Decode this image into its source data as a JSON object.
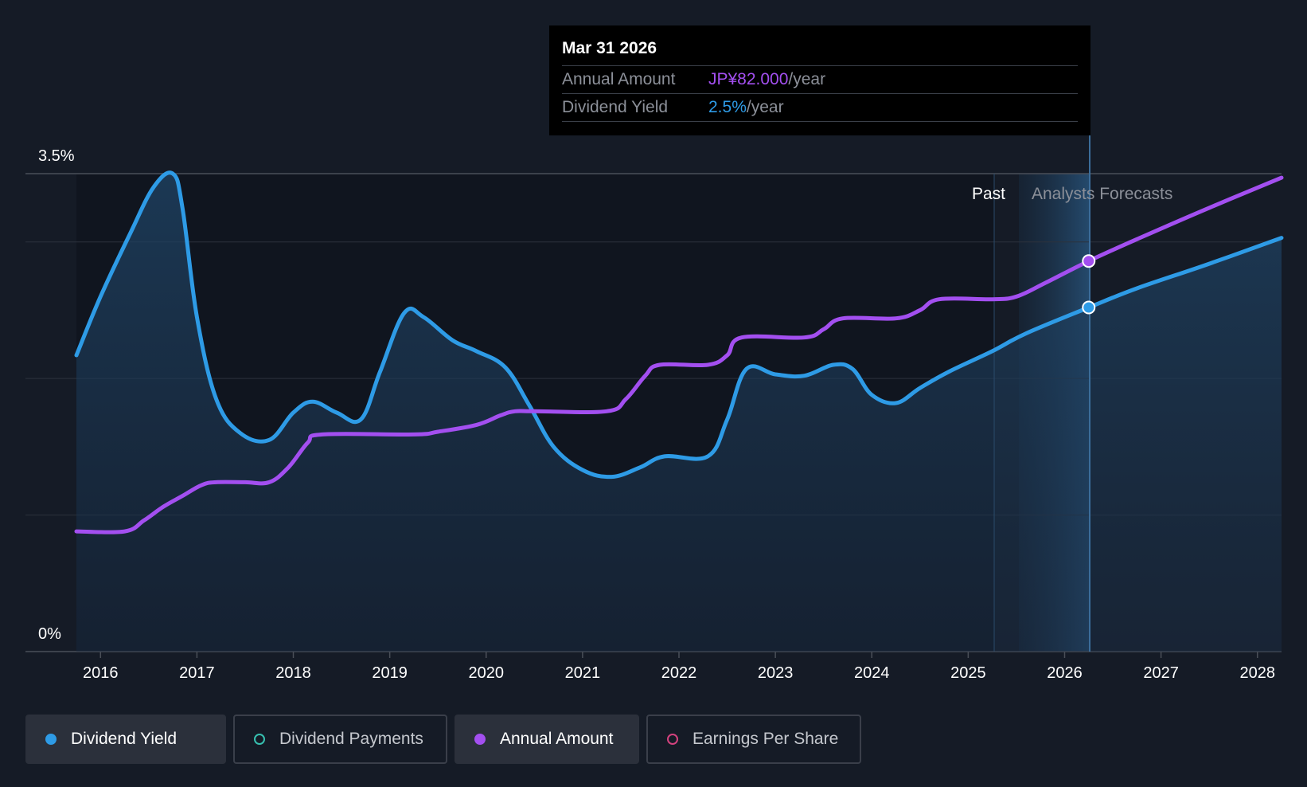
{
  "tooltip": {
    "date": "Mar 31 2026",
    "rows": [
      {
        "label": "Annual Amount",
        "value": "JP¥82.000",
        "suffix": "/year",
        "color": "#a34ff0"
      },
      {
        "label": "Dividend Yield",
        "value": "2.5%",
        "suffix": "/year",
        "color": "#2e9be6"
      }
    ]
  },
  "labels": {
    "past": "Past",
    "forecast": "Analysts Forecasts"
  },
  "legend": [
    {
      "label": "Dividend Yield",
      "color": "#2e9be6",
      "active": true
    },
    {
      "label": "Dividend Payments",
      "color": "#37c0b0",
      "active": false
    },
    {
      "label": "Annual Amount",
      "color": "#a34ff0",
      "active": true
    },
    {
      "label": "Earnings Per Share",
      "color": "#d3427e",
      "active": false
    }
  ],
  "chart_data": {
    "type": "line",
    "y_axis": {
      "min": 0,
      "max": 3.5,
      "tick_labels": [
        "0%",
        "3.5%"
      ],
      "gridlines": [
        0,
        1.0,
        2.0,
        3.0,
        3.5
      ]
    },
    "x_axis": {
      "min": 2015.75,
      "max": 2028.25,
      "tick_labels": [
        "2016",
        "2017",
        "2018",
        "2019",
        "2020",
        "2021",
        "2022",
        "2023",
        "2024",
        "2025",
        "2026",
        "2027",
        "2028"
      ]
    },
    "past_boundary": 2025.25,
    "forecast_start": 2025.5,
    "highlight_x": 2026.25,
    "series": [
      {
        "name": "Dividend Yield",
        "color": "#2e9be6",
        "filled": true,
        "points": [
          [
            2015.75,
            2.17
          ],
          [
            2016.0,
            2.6
          ],
          [
            2016.3,
            3.05
          ],
          [
            2016.55,
            3.4
          ],
          [
            2016.75,
            3.5
          ],
          [
            2016.85,
            3.25
          ],
          [
            2017.0,
            2.45
          ],
          [
            2017.2,
            1.85
          ],
          [
            2017.45,
            1.6
          ],
          [
            2017.75,
            1.55
          ],
          [
            2018.0,
            1.75
          ],
          [
            2018.2,
            1.83
          ],
          [
            2018.45,
            1.75
          ],
          [
            2018.7,
            1.7
          ],
          [
            2018.9,
            2.05
          ],
          [
            2019.15,
            2.48
          ],
          [
            2019.35,
            2.45
          ],
          [
            2019.65,
            2.28
          ],
          [
            2019.9,
            2.2
          ],
          [
            2020.2,
            2.08
          ],
          [
            2020.45,
            1.8
          ],
          [
            2020.7,
            1.5
          ],
          [
            2021.0,
            1.33
          ],
          [
            2021.3,
            1.28
          ],
          [
            2021.6,
            1.35
          ],
          [
            2021.85,
            1.43
          ],
          [
            2022.3,
            1.43
          ],
          [
            2022.5,
            1.7
          ],
          [
            2022.7,
            2.07
          ],
          [
            2023.0,
            2.03
          ],
          [
            2023.3,
            2.02
          ],
          [
            2023.6,
            2.1
          ],
          [
            2023.8,
            2.07
          ],
          [
            2024.0,
            1.88
          ],
          [
            2024.25,
            1.82
          ],
          [
            2024.5,
            1.93
          ],
          [
            2024.8,
            2.05
          ],
          [
            2025.25,
            2.2
          ],
          [
            2025.6,
            2.33
          ],
          [
            2026.25,
            2.52
          ],
          [
            2026.75,
            2.66
          ],
          [
            2027.5,
            2.84
          ],
          [
            2028.25,
            3.03
          ]
        ]
      },
      {
        "name": "Annual Amount",
        "color": "#a34ff0",
        "filled": false,
        "points": [
          [
            2015.75,
            0.88
          ],
          [
            2016.25,
            0.88
          ],
          [
            2016.45,
            0.96
          ],
          [
            2016.65,
            1.06
          ],
          [
            2016.85,
            1.14
          ],
          [
            2017.05,
            1.22
          ],
          [
            2017.2,
            1.24
          ],
          [
            2017.5,
            1.24
          ],
          [
            2017.75,
            1.24
          ],
          [
            2017.95,
            1.35
          ],
          [
            2018.15,
            1.53
          ],
          [
            2018.3,
            1.59
          ],
          [
            2019.25,
            1.59
          ],
          [
            2019.5,
            1.61
          ],
          [
            2019.9,
            1.66
          ],
          [
            2020.15,
            1.73
          ],
          [
            2020.3,
            1.76
          ],
          [
            2020.5,
            1.76
          ],
          [
            2021.25,
            1.76
          ],
          [
            2021.45,
            1.85
          ],
          [
            2021.65,
            2.02
          ],
          [
            2021.8,
            2.1
          ],
          [
            2022.3,
            2.1
          ],
          [
            2022.5,
            2.17
          ],
          [
            2022.65,
            2.3
          ],
          [
            2023.3,
            2.3
          ],
          [
            2023.5,
            2.36
          ],
          [
            2023.7,
            2.44
          ],
          [
            2024.25,
            2.44
          ],
          [
            2024.5,
            2.5
          ],
          [
            2024.7,
            2.58
          ],
          [
            2025.25,
            2.58
          ],
          [
            2025.5,
            2.6
          ],
          [
            2025.8,
            2.7
          ],
          [
            2026.25,
            2.86
          ],
          [
            2026.75,
            3.02
          ],
          [
            2027.5,
            3.25
          ],
          [
            2028.25,
            3.47
          ]
        ]
      }
    ]
  }
}
